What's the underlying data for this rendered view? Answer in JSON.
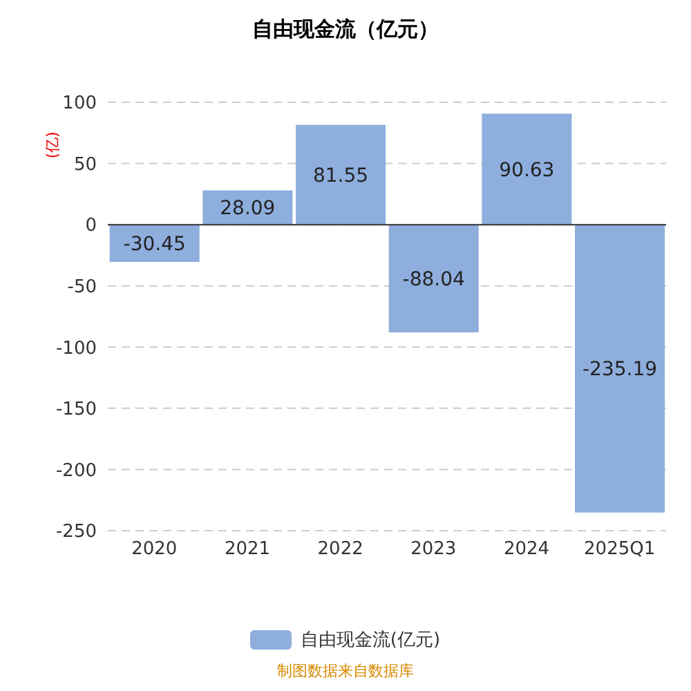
{
  "chart_data": {
    "type": "bar",
    "title": "自由现金流（亿元）",
    "ylabel": "(亿)",
    "categories": [
      "2020",
      "2021",
      "2022",
      "2023",
      "2024",
      "2025Q1"
    ],
    "series": [
      {
        "name": "自由现金流(亿元)",
        "color": "#8eaedd",
        "values": [
          -30.45,
          28.09,
          81.55,
          -88.04,
          90.63,
          -235.19
        ]
      }
    ],
    "ylim": [
      -250,
      100
    ],
    "yticks": [
      -250,
      -200,
      -150,
      -100,
      -50,
      0,
      50,
      100
    ],
    "grid": "y",
    "legend": "bottom",
    "data_labels": true,
    "annotations": [
      "制图数据来自数据库"
    ]
  }
}
